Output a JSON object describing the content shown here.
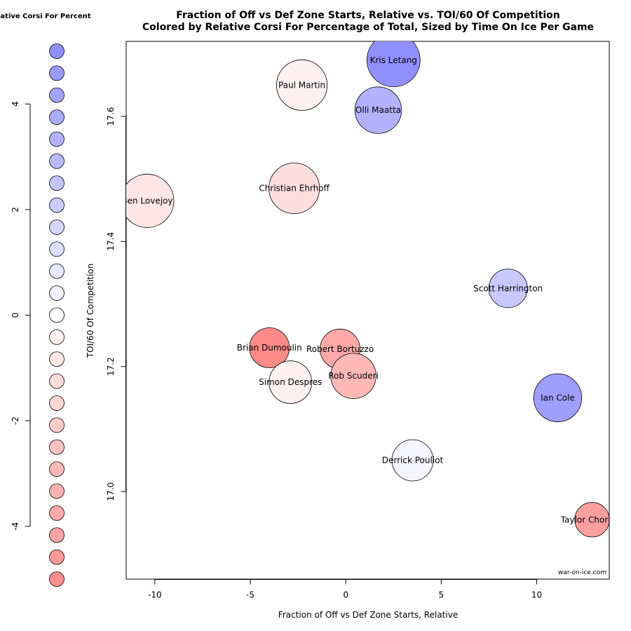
{
  "chart_data": {
    "type": "scatter",
    "title": "Fraction of Off vs Def Zone Starts, Relative vs. TOI/60 Of Competition",
    "subtitle": "Colored by Relative Corsi For Percentage of Total, Sized by Time On Ice Per Game",
    "xlabel": "Fraction of Off vs Def Zone Starts, Relative",
    "ylabel": "TOI/60 Of Competition",
    "xlim": [
      -11.5,
      13.8
    ],
    "ylim": [
      16.86,
      17.72
    ],
    "xticks": [
      -10,
      -5,
      0,
      5,
      10
    ],
    "yticks": [
      17.0,
      17.2,
      17.4,
      17.6
    ],
    "grid": false,
    "watermark": "war-on-ice.com",
    "points": [
      {
        "label": "Kris Letang",
        "x": 2.5,
        "y": 17.69,
        "color": "#9090ff",
        "size": 40
      },
      {
        "label": "Paul Martin",
        "x": -2.3,
        "y": 17.65,
        "color": "#fff1f1",
        "size": 38
      },
      {
        "label": "Olli Maatta",
        "x": 1.7,
        "y": 17.61,
        "color": "#b2b2ff",
        "size": 35
      },
      {
        "label": "Christian Ehrhoff",
        "x": -2.7,
        "y": 17.485,
        "color": "#ffdede",
        "size": 38
      },
      {
        "label": "Ben Lovejoy",
        "x": -10.4,
        "y": 17.465,
        "color": "#ffe6e6",
        "size": 40
      },
      {
        "label": "Scott Harrington",
        "x": 8.5,
        "y": 17.325,
        "color": "#c8c8ff",
        "size": 29
      },
      {
        "label": "Brian Dumoulin",
        "x": -4.0,
        "y": 17.23,
        "color": "#ff8a8a",
        "size": 30
      },
      {
        "label": "Robert Bortuzzo",
        "x": -0.3,
        "y": 17.228,
        "color": "#ffa8a8",
        "size": 30
      },
      {
        "label": "Rob Scuderi",
        "x": 0.4,
        "y": 17.185,
        "color": "#ffb8b8",
        "size": 34
      },
      {
        "label": "Simon Despres",
        "x": -2.9,
        "y": 17.175,
        "color": "#fff1f1",
        "size": 32
      },
      {
        "label": "Ian Cole",
        "x": 11.1,
        "y": 17.15,
        "color": "#9e9eff",
        "size": 36
      },
      {
        "label": "Derrick Pouliot",
        "x": 3.5,
        "y": 17.05,
        "color": "#f5f5ff",
        "size": 31
      },
      {
        "label": "Taylor Chorney",
        "x": 12.9,
        "y": 16.955,
        "color": "#ffa0a0",
        "size": 26
      }
    ],
    "legend": {
      "title": "Relative Corsi For Percent",
      "placement": "left",
      "ticks": [
        4,
        2,
        0,
        -2,
        -4
      ],
      "range": [
        -5,
        5
      ],
      "swatches": [
        "#8f8fff",
        "#9a9aff",
        "#a3a3ff",
        "#aaaaff",
        "#b2b2ff",
        "#b9b9ff",
        "#c3c3ff",
        "#cbcbff",
        "#d5d5ff",
        "#dcdcff",
        "#e6e6ff",
        "#f1f1ff",
        "#ffffff",
        "#fff1f1",
        "#ffe6e6",
        "#ffdcdc",
        "#ffd5d5",
        "#ffcbcb",
        "#ffc3c3",
        "#ffb9b9",
        "#ffb2b2",
        "#ffaaaa",
        "#ffa3a3",
        "#ff9a9a",
        "#ff8f8f"
      ]
    }
  }
}
